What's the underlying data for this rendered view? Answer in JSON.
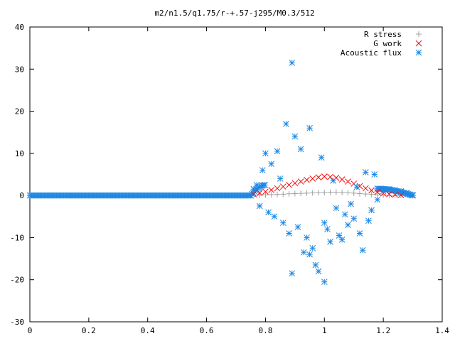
{
  "chart_data": {
    "type": "scatter",
    "title": "m2/n1.5/q1.75/r-+.57-j295/M0.3/512",
    "xlabel": "",
    "ylabel": "",
    "xlim": [
      0,
      1.4
    ],
    "ylim": [
      -30,
      40
    ],
    "x_ticks": [
      "0",
      "0.2",
      "0.4",
      "0.6",
      "0.8",
      "1",
      "1.2",
      "1.4"
    ],
    "y_ticks": [
      "-30",
      "-20",
      "-10",
      "0",
      "10",
      "20",
      "30",
      "40"
    ],
    "legend_position": "top-right",
    "grid": false,
    "series": [
      {
        "name": "R stress",
        "marker": "plus",
        "color": "#a0a0a0",
        "points": [
          [
            0.78,
            0.1
          ],
          [
            0.8,
            0.15
          ],
          [
            0.82,
            0.2
          ],
          [
            0.84,
            0.25
          ],
          [
            0.86,
            0.3
          ],
          [
            0.88,
            0.4
          ],
          [
            0.9,
            0.45
          ],
          [
            0.92,
            0.5
          ],
          [
            0.94,
            0.55
          ],
          [
            0.96,
            0.6
          ],
          [
            0.98,
            0.65
          ],
          [
            1.0,
            0.7
          ],
          [
            1.02,
            0.75
          ],
          [
            1.04,
            0.75
          ],
          [
            1.06,
            0.7
          ],
          [
            1.08,
            0.65
          ],
          [
            1.1,
            0.55
          ],
          [
            1.12,
            0.45
          ],
          [
            1.14,
            0.35
          ],
          [
            1.16,
            0.25
          ],
          [
            1.18,
            0.15
          ],
          [
            1.2,
            0.1
          ],
          [
            1.22,
            0.05
          ],
          [
            1.24,
            0.0
          ],
          [
            1.26,
            0.0
          ]
        ]
      },
      {
        "name": "G work",
        "marker": "cross",
        "color": "#ff0000",
        "points": [
          [
            0.76,
            0.3
          ],
          [
            0.78,
            0.6
          ],
          [
            0.8,
            0.9
          ],
          [
            0.82,
            1.3
          ],
          [
            0.84,
            1.7
          ],
          [
            0.86,
            2.1
          ],
          [
            0.88,
            2.5
          ],
          [
            0.9,
            2.9
          ],
          [
            0.92,
            3.3
          ],
          [
            0.94,
            3.7
          ],
          [
            0.96,
            4.0
          ],
          [
            0.98,
            4.3
          ],
          [
            1.0,
            4.5
          ],
          [
            1.02,
            4.4
          ],
          [
            1.04,
            4.2
          ],
          [
            1.06,
            3.8
          ],
          [
            1.08,
            3.3
          ],
          [
            1.1,
            2.8
          ],
          [
            1.12,
            2.2
          ],
          [
            1.14,
            1.7
          ],
          [
            1.16,
            1.2
          ],
          [
            1.18,
            0.8
          ],
          [
            1.2,
            0.5
          ],
          [
            1.22,
            0.3
          ],
          [
            1.24,
            0.2
          ],
          [
            1.26,
            0.1
          ]
        ]
      },
      {
        "name": "Acoustic flux",
        "marker": "star",
        "color": "#1e88e5",
        "points": [
          [
            0.75,
            0.0
          ],
          [
            0.76,
            1.5
          ],
          [
            0.77,
            2.5
          ],
          [
            0.78,
            -2.5
          ],
          [
            0.79,
            6.0
          ],
          [
            0.8,
            10.0
          ],
          [
            0.81,
            -4.0
          ],
          [
            0.82,
            7.5
          ],
          [
            0.83,
            -5.0
          ],
          [
            0.84,
            10.5
          ],
          [
            0.85,
            4.0
          ],
          [
            0.86,
            -6.5
          ],
          [
            0.87,
            17.0
          ],
          [
            0.88,
            -9.0
          ],
          [
            0.89,
            31.5
          ],
          [
            0.89,
            -18.5
          ],
          [
            0.9,
            14.0
          ],
          [
            0.91,
            -7.5
          ],
          [
            0.92,
            11.0
          ],
          [
            0.93,
            -13.5
          ],
          [
            0.94,
            -10.0
          ],
          [
            0.95,
            16.0
          ],
          [
            0.95,
            -14.0
          ],
          [
            0.96,
            -12.5
          ],
          [
            0.97,
            -16.5
          ],
          [
            0.98,
            -18.0
          ],
          [
            0.99,
            9.0
          ],
          [
            1.0,
            -20.5
          ],
          [
            1.0,
            -6.5
          ],
          [
            1.01,
            -8.0
          ],
          [
            1.02,
            -11.0
          ],
          [
            1.03,
            3.5
          ],
          [
            1.04,
            -3.0
          ],
          [
            1.05,
            -9.5
          ],
          [
            1.06,
            -10.5
          ],
          [
            1.07,
            -4.5
          ],
          [
            1.08,
            -7.0
          ],
          [
            1.09,
            -2.0
          ],
          [
            1.1,
            -5.5
          ],
          [
            1.11,
            2.0
          ],
          [
            1.12,
            -9.0
          ],
          [
            1.13,
            -13.0
          ],
          [
            1.14,
            5.5
          ],
          [
            1.15,
            -6.0
          ],
          [
            1.16,
            -3.5
          ],
          [
            1.17,
            5.0
          ],
          [
            1.18,
            -1.0
          ],
          [
            1.2,
            1.0
          ],
          [
            1.22,
            1.5
          ],
          [
            1.24,
            1.2
          ],
          [
            1.26,
            1.0
          ],
          [
            1.28,
            0.6
          ],
          [
            1.3,
            0.1
          ]
        ]
      }
    ]
  }
}
